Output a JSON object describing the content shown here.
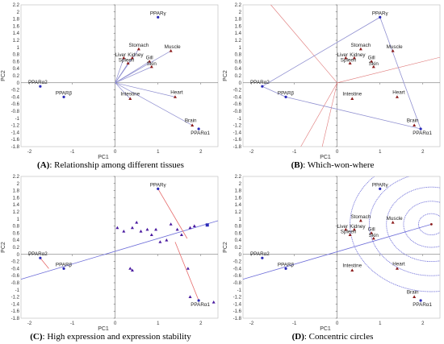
{
  "chart_data": [
    {
      "type": "scatter",
      "panel_letter": "(A)",
      "caption": ": Relationship among different tissues",
      "xlabel": "PC1",
      "ylabel": "PC2",
      "xlim": [
        -2.2,
        2.4
      ],
      "ylim": [
        -1.8,
        2.2
      ],
      "xticks": [
        -2,
        -1,
        0,
        1,
        2
      ],
      "yticks": [
        -1.8,
        -1.6,
        -1.4,
        -1.2,
        -1,
        -0.8,
        -0.6,
        -0.4,
        -0.2,
        0,
        0.2,
        0.4,
        0.6,
        0.8,
        1,
        1.2,
        1.4,
        1.6,
        1.8,
        2,
        2.2
      ],
      "genes": [
        {
          "label": "PPARγ",
          "x": 1.0,
          "y": 1.85
        },
        {
          "label": "PPARα2",
          "x": -1.75,
          "y": -0.1
        },
        {
          "label": "PPARβ",
          "x": -1.2,
          "y": -0.4
        },
        {
          "label": "PPARα1",
          "x": 1.95,
          "y": -1.3
        }
      ],
      "tissues": [
        {
          "label": "Stomach",
          "x": 0.55,
          "y": 0.95
        },
        {
          "label": "Muscle",
          "x": 1.3,
          "y": 0.9
        },
        {
          "label": "Liver",
          "x": 0.2,
          "y": 0.7
        },
        {
          "label": "Kidney",
          "x": 0.4,
          "y": 0.7
        },
        {
          "label": "Spleen",
          "x": 0.3,
          "y": 0.55
        },
        {
          "label": "Gill",
          "x": 0.8,
          "y": 0.6
        },
        {
          "label": "Skin",
          "x": 0.85,
          "y": 0.45
        },
        {
          "label": "Intestine",
          "x": 0.35,
          "y": -0.45
        },
        {
          "label": "Heart",
          "x": 1.4,
          "y": -0.4
        },
        {
          "label": "Brain",
          "x": 1.8,
          "y": -1.2
        }
      ]
    },
    {
      "type": "scatter",
      "panel_letter": "(B)",
      "caption": ": Which-won-where",
      "xlabel": "PC1",
      "ylabel": "PC2",
      "xlim": [
        -2.2,
        2.4
      ],
      "ylim": [
        -1.8,
        2.2
      ],
      "xticks": [
        -2,
        -1,
        0,
        1,
        2
      ],
      "yticks": [
        -1.8,
        -1.6,
        -1.4,
        -1.2,
        -1,
        -0.8,
        -0.6,
        -0.4,
        -0.2,
        0,
        0.2,
        0.4,
        0.6,
        0.8,
        1,
        1.2,
        1.4,
        1.6,
        1.8,
        2,
        2.2
      ],
      "genes": [
        {
          "label": "PPARγ",
          "x": 1.0,
          "y": 1.85
        },
        {
          "label": "PPARα2",
          "x": -1.75,
          "y": -0.1
        },
        {
          "label": "PPARβ",
          "x": -1.2,
          "y": -0.4
        },
        {
          "label": "PPARα1",
          "x": 1.95,
          "y": -1.3
        }
      ],
      "tissues": [
        {
          "label": "Stomach",
          "x": 0.55,
          "y": 0.95
        },
        {
          "label": "Muscle",
          "x": 1.3,
          "y": 0.9
        },
        {
          "label": "Liver",
          "x": 0.2,
          "y": 0.7
        },
        {
          "label": "Kidney",
          "x": 0.4,
          "y": 0.7
        },
        {
          "label": "Spleen",
          "x": 0.3,
          "y": 0.55
        },
        {
          "label": "Gill",
          "x": 0.8,
          "y": 0.6
        },
        {
          "label": "Skin",
          "x": 0.85,
          "y": 0.45
        },
        {
          "label": "Intestine",
          "x": 0.35,
          "y": -0.45
        },
        {
          "label": "Heart",
          "x": 1.4,
          "y": -0.4
        },
        {
          "label": "Brain",
          "x": 1.8,
          "y": -1.2
        }
      ],
      "hull_order": [
        "PPARγ",
        "PPARα1",
        "PPARβ",
        "PPARα2"
      ],
      "sector_rays": [
        {
          "x1": 0,
          "y1": 0,
          "x2": -1.55,
          "y2": 2.2
        },
        {
          "x1": 0,
          "y1": 0,
          "x2": 2.4,
          "y2": 0.72
        },
        {
          "x1": 0,
          "y1": 0,
          "x2": -0.85,
          "y2": -1.8
        },
        {
          "x1": 0,
          "y1": 0,
          "x2": -0.35,
          "y2": -1.8
        }
      ]
    },
    {
      "type": "scatter",
      "panel_letter": "(C)",
      "caption": ": High expression and expression stability",
      "xlabel": "PC1",
      "ylabel": "PC2",
      "xlim": [
        -2.2,
        2.4
      ],
      "ylim": [
        -1.8,
        2.2
      ],
      "xticks": [
        -2,
        -1,
        0,
        1,
        2
      ],
      "yticks": [
        -1.8,
        -1.6,
        -1.4,
        -1.2,
        -1,
        -0.8,
        -0.6,
        -0.4,
        -0.2,
        0,
        0.2,
        0.4,
        0.6,
        0.8,
        1,
        1.2,
        1.4,
        1.6,
        1.8,
        2,
        2.2
      ],
      "genes": [
        {
          "label": "PPARγ",
          "x": 1.0,
          "y": 1.85
        },
        {
          "label": "PPARα2",
          "x": -1.75,
          "y": -0.1
        },
        {
          "label": "PPARβ",
          "x": -1.2,
          "y": -0.4
        },
        {
          "label": "PPARα1",
          "x": 1.95,
          "y": -1.3
        }
      ],
      "tissue_points": [
        {
          "x": 0.05,
          "y": 0.75
        },
        {
          "x": 0.2,
          "y": 0.65
        },
        {
          "x": 0.4,
          "y": 0.75
        },
        {
          "x": 0.5,
          "y": 0.9
        },
        {
          "x": 0.6,
          "y": 0.65
        },
        {
          "x": 0.75,
          "y": 0.7
        },
        {
          "x": 0.85,
          "y": 0.55
        },
        {
          "x": 0.95,
          "y": 0.7
        },
        {
          "x": 1.3,
          "y": 0.85
        },
        {
          "x": 1.45,
          "y": 0.7
        },
        {
          "x": 1.55,
          "y": 0.55
        },
        {
          "x": 1.05,
          "y": 0.35
        },
        {
          "x": 1.2,
          "y": 0.4
        },
        {
          "x": 0.35,
          "y": -0.4
        },
        {
          "x": 0.4,
          "y": -0.45
        },
        {
          "x": 1.75,
          "y": 0.75
        },
        {
          "x": 1.85,
          "y": 0.8
        },
        {
          "x": 1.7,
          "y": -0.4
        },
        {
          "x": 1.75,
          "y": -1.2
        },
        {
          "x": 2.3,
          "y": -1.35
        }
      ],
      "average_point": {
        "x": 2.15,
        "y": 0.83
      },
      "aec_line": {
        "x1": -2.2,
        "y1": -0.7,
        "x2": 2.4,
        "y2": 0.95
      },
      "perpendiculars": [
        {
          "x1": 1.0,
          "y1": 1.85,
          "x2": 1.68,
          "y2": 0.45
        },
        {
          "x1": 1.95,
          "y1": -1.3,
          "x2": 1.4,
          "y2": 0.35
        },
        {
          "x1": -1.75,
          "y1": -0.1,
          "x2": -1.55,
          "y2": -0.4
        }
      ]
    },
    {
      "type": "scatter",
      "panel_letter": "(D)",
      "caption": ": Concentric circles",
      "xlabel": "PC1",
      "ylabel": "PC2",
      "xlim": [
        -2.2,
        2.4
      ],
      "ylim": [
        -1.8,
        2.2
      ],
      "xticks": [
        -2,
        -1,
        0,
        1,
        2
      ],
      "yticks": [
        -1.8,
        -1.6,
        -1.4,
        -1.2,
        -1,
        -0.8,
        -0.6,
        -0.4,
        -0.2,
        0,
        0.2,
        0.4,
        0.6,
        0.8,
        1,
        1.2,
        1.4,
        1.6,
        1.8,
        2,
        2.2
      ],
      "genes": [
        {
          "label": "PPARγ",
          "x": 1.0,
          "y": 1.85
        },
        {
          "label": "PPARα2",
          "x": -1.75,
          "y": -0.1
        },
        {
          "label": "PPARβ",
          "x": -1.2,
          "y": -0.4
        },
        {
          "label": "PPARα1",
          "x": 1.95,
          "y": -1.3
        }
      ],
      "tissues": [
        {
          "label": "Stomach",
          "x": 0.55,
          "y": 0.95
        },
        {
          "label": "Muscle",
          "x": 1.3,
          "y": 0.9
        },
        {
          "label": "Liver",
          "x": 0.2,
          "y": 0.7
        },
        {
          "label": "Kidney",
          "x": 0.4,
          "y": 0.7
        },
        {
          "label": "Spleen",
          "x": 0.3,
          "y": 0.55
        },
        {
          "label": "Gill",
          "x": 0.8,
          "y": 0.6
        },
        {
          "label": "Skin",
          "x": 0.85,
          "y": 0.45
        },
        {
          "label": "Intestine",
          "x": 0.35,
          "y": -0.45
        },
        {
          "label": "Heart",
          "x": 1.4,
          "y": -0.4
        },
        {
          "label": "Brain",
          "x": 1.8,
          "y": -1.2
        }
      ],
      "ideal_point": {
        "x": 2.2,
        "y": 0.85
      },
      "circle_radii": [
        0.3,
        0.65,
        1.05,
        1.45,
        1.9
      ],
      "aec_line": {
        "x1": -2.2,
        "y1": -0.7,
        "x2": 2.4,
        "y2": 0.95
      }
    }
  ],
  "colors": {
    "gene_marker": "#2b2bb8",
    "tissue_marker": "#8b1a1a",
    "tissue_marker_c": "#4a1aa0",
    "vector": "#8f8fd0",
    "sector": "#e07a7a",
    "aec": "#6c6cd8",
    "perp": "#e66a6a",
    "circle": "#6c6cd8",
    "axis": "#555555"
  }
}
